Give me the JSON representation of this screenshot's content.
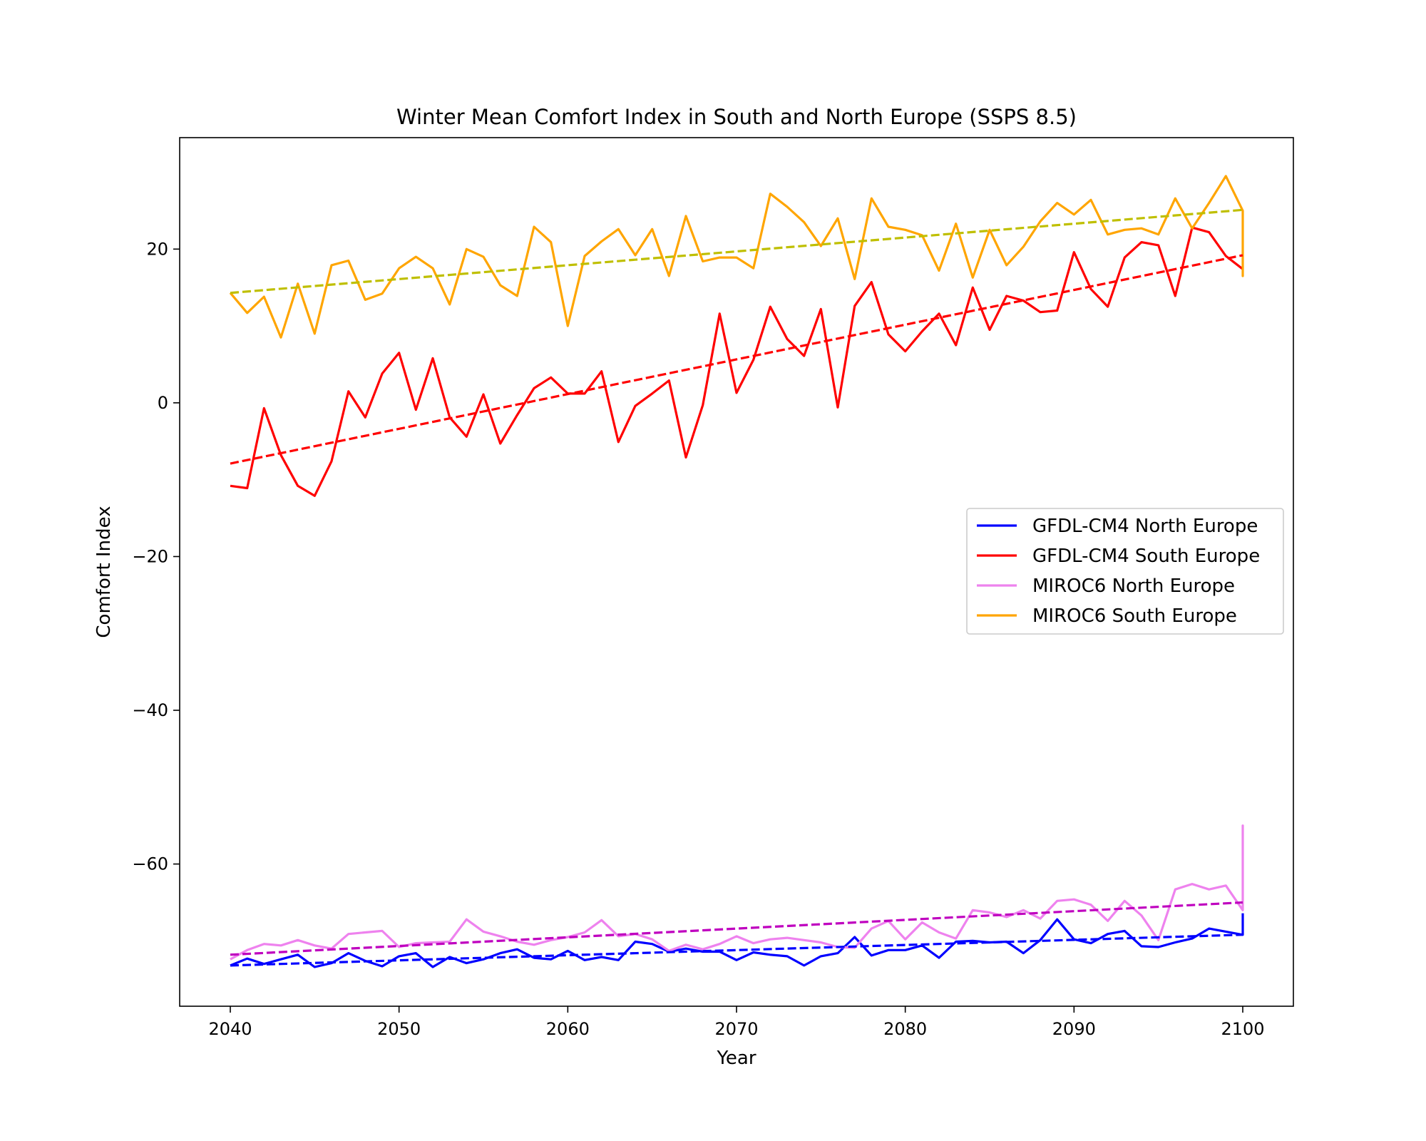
{
  "chart_data": {
    "type": "line",
    "title": "Winter Mean Comfort Index in South and North Europe (SSPS 8.5)",
    "xlabel": "Year",
    "ylabel": "Comfort Index",
    "xlim": [
      2037,
      2103
    ],
    "ylim": [
      -78.5,
      34.5
    ],
    "xticks": [
      2040,
      2050,
      2060,
      2070,
      2080,
      2090,
      2100
    ],
    "yticks": [
      20,
      0,
      -20,
      -40,
      -60
    ],
    "ytick_labels": [
      "20",
      "0",
      "−20",
      "−40",
      "−60"
    ],
    "grid": false,
    "legend_position": "center-right",
    "series": [
      {
        "name": "GFDL-CM4 North Europe",
        "color": "#0000ff",
        "x": [
          2040,
          2041,
          2042,
          2043,
          2044,
          2045,
          2046,
          2047,
          2048,
          2049,
          2050,
          2051,
          2052,
          2053,
          2054,
          2055,
          2056,
          2057,
          2058,
          2059,
          2060,
          2061,
          2062,
          2063,
          2064,
          2065,
          2066,
          2067,
          2068,
          2069,
          2070,
          2071,
          2072,
          2073,
          2074,
          2075,
          2076,
          2077,
          2078,
          2079,
          2080,
          2081,
          2082,
          2083,
          2084,
          2085,
          2086,
          2087,
          2088,
          2089,
          2090,
          2091,
          2092,
          2093,
          2094,
          2095,
          2096,
          2097,
          2098,
          2099,
          2100,
          2100
        ],
        "values": [
          -73.2,
          -72.3,
          -73.0,
          -72.4,
          -71.8,
          -73.4,
          -72.9,
          -71.6,
          -72.6,
          -73.3,
          -72.0,
          -71.6,
          -73.4,
          -72.1,
          -72.9,
          -72.4,
          -71.6,
          -71.1,
          -72.2,
          -72.4,
          -71.3,
          -72.5,
          -72.1,
          -72.5,
          -70.1,
          -70.4,
          -71.4,
          -71.0,
          -71.4,
          -71.4,
          -72.5,
          -71.5,
          -71.8,
          -72.0,
          -73.2,
          -72.0,
          -71.6,
          -69.5,
          -71.9,
          -71.2,
          -71.2,
          -70.6,
          -72.2,
          -70.1,
          -70.0,
          -70.2,
          -70.1,
          -71.6,
          -69.9,
          -67.2,
          -69.8,
          -70.3,
          -69.1,
          -68.7,
          -70.7,
          -70.8,
          -70.2,
          -69.7,
          -68.4,
          -68.8,
          -69.2,
          -66.4
        ]
      },
      {
        "name": "GFDL-CM4 South Europe",
        "color": "#ff0000",
        "x": [
          2040,
          2041,
          2042,
          2043,
          2044,
          2045,
          2046,
          2047,
          2048,
          2049,
          2050,
          2051,
          2052,
          2053,
          2054,
          2055,
          2056,
          2057,
          2058,
          2059,
          2060,
          2061,
          2062,
          2063,
          2064,
          2065,
          2066,
          2067,
          2068,
          2069,
          2070,
          2071,
          2072,
          2073,
          2074,
          2075,
          2076,
          2077,
          2078,
          2079,
          2080,
          2081,
          2082,
          2083,
          2084,
          2085,
          2086,
          2087,
          2088,
          2089,
          2090,
          2091,
          2092,
          2093,
          2094,
          2095,
          2096,
          2097,
          2098,
          2099,
          2100
        ],
        "values": [
          -10.8,
          -11.1,
          -0.7,
          -6.8,
          -10.8,
          -12.1,
          -7.6,
          1.5,
          -1.9,
          3.8,
          6.5,
          -0.9,
          5.8,
          -1.9,
          -4.4,
          1.1,
          -5.3,
          -1.6,
          1.9,
          3.3,
          1.2,
          1.2,
          4.1,
          -5.1,
          -0.4,
          1.2,
          2.9,
          -7.1,
          -0.3,
          11.6,
          1.3,
          5.6,
          12.5,
          8.3,
          6.1,
          12.2,
          -0.6,
          12.6,
          15.7,
          8.9,
          6.7,
          9.3,
          11.6,
          7.5,
          15.0,
          9.5,
          13.9,
          13.3,
          11.8,
          12.0,
          19.6,
          14.8,
          12.5,
          18.9,
          20.9,
          20.5,
          13.9,
          22.8,
          22.2,
          19.1,
          17.4
        ]
      },
      {
        "name": "MIROC6 North Europe",
        "color": "#ee82ee",
        "x": [
          2040,
          2041,
          2042,
          2043,
          2044,
          2045,
          2046,
          2047,
          2048,
          2049,
          2050,
          2051,
          2052,
          2053,
          2054,
          2055,
          2056,
          2057,
          2058,
          2059,
          2060,
          2061,
          2062,
          2063,
          2064,
          2065,
          2066,
          2067,
          2068,
          2069,
          2070,
          2071,
          2072,
          2073,
          2074,
          2075,
          2076,
          2077,
          2078,
          2079,
          2080,
          2081,
          2082,
          2083,
          2084,
          2085,
          2086,
          2087,
          2088,
          2089,
          2090,
          2091,
          2092,
          2093,
          2094,
          2095,
          2096,
          2097,
          2098,
          2099,
          2100,
          2100,
          2100
        ],
        "values": [
          -72.4,
          -71.2,
          -70.4,
          -70.6,
          -69.9,
          -70.6,
          -71.0,
          -69.1,
          -68.9,
          -68.7,
          -70.8,
          -70.3,
          -70.2,
          -70.1,
          -67.2,
          -68.8,
          -69.4,
          -70.1,
          -70.5,
          -69.9,
          -69.5,
          -68.9,
          -67.3,
          -69.4,
          -69.1,
          -69.8,
          -71.3,
          -70.5,
          -71.1,
          -70.4,
          -69.4,
          -70.3,
          -69.8,
          -69.6,
          -69.9,
          -70.2,
          -70.8,
          -70.9,
          -68.4,
          -67.4,
          -69.8,
          -67.6,
          -68.9,
          -69.7,
          -66.0,
          -66.3,
          -66.9,
          -66.0,
          -67.1,
          -64.8,
          -64.6,
          -65.3,
          -67.4,
          -64.8,
          -66.7,
          -69.9,
          -63.3,
          -62.6,
          -63.3,
          -62.8,
          -66.0,
          -55.0,
          -64.2
        ]
      },
      {
        "name": "MIROC6 South Europe",
        "color": "#ffa500",
        "x": [
          2040,
          2041,
          2042,
          2043,
          2044,
          2045,
          2046,
          2047,
          2048,
          2049,
          2050,
          2051,
          2052,
          2053,
          2054,
          2055,
          2056,
          2057,
          2058,
          2059,
          2060,
          2061,
          2062,
          2063,
          2064,
          2065,
          2066,
          2067,
          2068,
          2069,
          2070,
          2071,
          2072,
          2073,
          2074,
          2075,
          2076,
          2077,
          2078,
          2079,
          2080,
          2081,
          2082,
          2083,
          2084,
          2085,
          2086,
          2087,
          2088,
          2089,
          2090,
          2091,
          2092,
          2093,
          2094,
          2095,
          2096,
          2097,
          2098,
          2099,
          2100,
          2100,
          2100
        ],
        "values": [
          14.3,
          11.7,
          13.8,
          8.5,
          15.5,
          9.0,
          17.9,
          18.5,
          13.4,
          14.2,
          17.5,
          19.0,
          17.5,
          12.8,
          20.0,
          19.0,
          15.3,
          13.9,
          22.9,
          20.9,
          10.0,
          19.1,
          21.0,
          22.6,
          19.2,
          22.6,
          16.5,
          24.3,
          18.4,
          18.9,
          18.9,
          17.5,
          27.2,
          25.5,
          23.5,
          20.4,
          24.0,
          16.1,
          26.6,
          22.9,
          22.5,
          21.8,
          17.2,
          23.3,
          16.3,
          22.5,
          17.9,
          20.3,
          23.6,
          26.0,
          24.5,
          26.4,
          21.9,
          22.5,
          22.7,
          21.9,
          26.6,
          22.7,
          26.0,
          29.5,
          25.0,
          16.5,
          19.0
        ]
      }
    ],
    "trend_lines": [
      {
        "color": "#0000ff",
        "x": [
          2040,
          2100
        ],
        "values": [
          -73.2,
          -69.2
        ]
      },
      {
        "color": "#ff0000",
        "x": [
          2040,
          2100
        ],
        "values": [
          -7.9,
          19.2
        ]
      },
      {
        "color": "#bf00bf",
        "x": [
          2040,
          2100
        ],
        "values": [
          -71.8,
          -65.0
        ]
      },
      {
        "color": "#bfbf00",
        "x": [
          2040,
          2100
        ],
        "values": [
          14.3,
          25.1
        ]
      }
    ]
  }
}
